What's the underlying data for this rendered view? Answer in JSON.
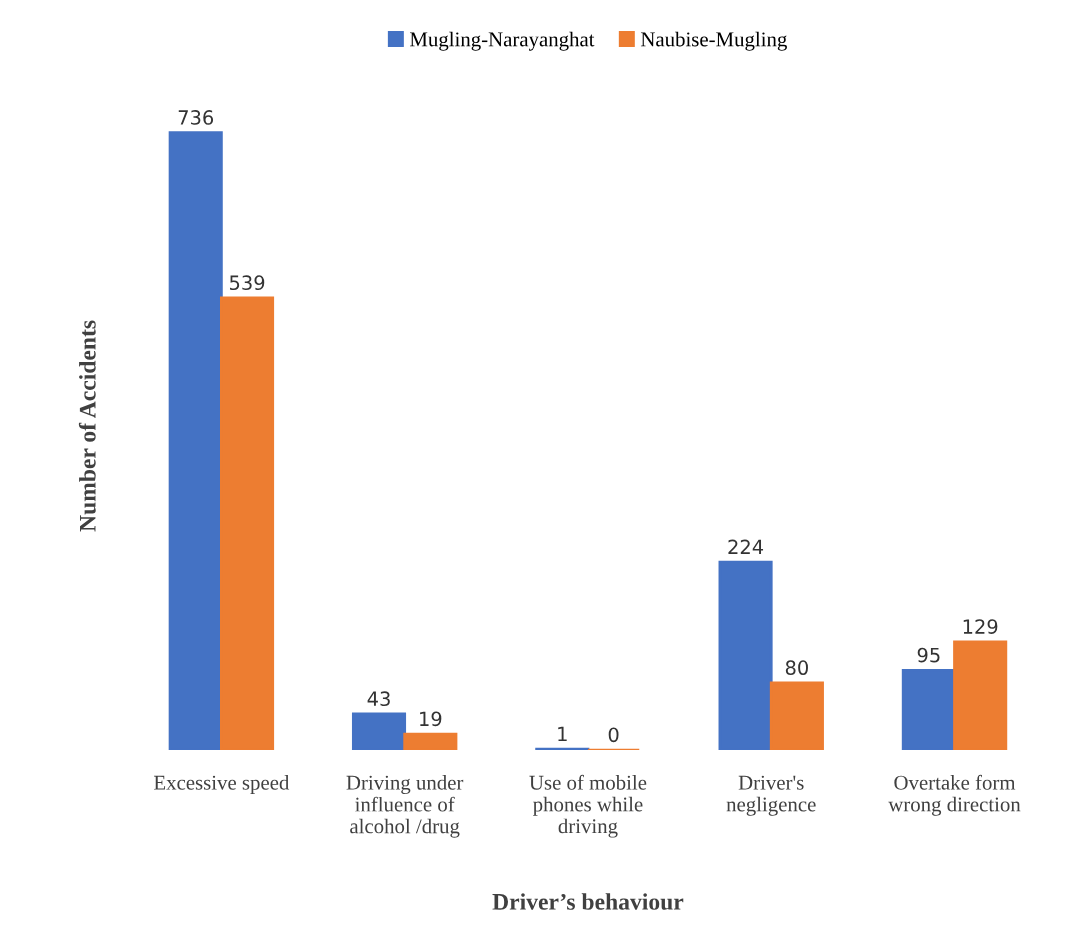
{
  "chart_data": {
    "type": "bar",
    "xlabel": "Driver’s behaviour",
    "ylabel": "Number of Accidents",
    "categories": [
      "Excessive speed",
      "Driving under\ninfluence of\nalcohol /drug",
      "Use of mobile\nphones while\ndriving",
      "Driver's\nnegligence",
      "Overtake form\nwrong direction"
    ],
    "series": [
      {
        "name": "Mugling-Narayanghat",
        "color": "#4472c4",
        "values": [
          736,
          43,
          1,
          224,
          95
        ]
      },
      {
        "name": "Naubise-Mugling",
        "color": "#ed7d31",
        "values": [
          539,
          19,
          0,
          80,
          129
        ]
      }
    ],
    "data_labels": true,
    "legend": "top",
    "grid": false
  }
}
